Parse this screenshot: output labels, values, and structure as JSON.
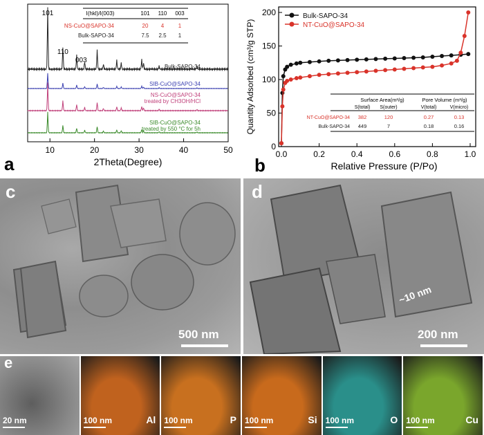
{
  "panels": {
    "a": "a",
    "b": "b",
    "c": "c",
    "d": "d",
    "e": "e"
  },
  "chart_data": [
    {
      "type": "line",
      "panel": "a",
      "xlabel": "2Theta(Degree)",
      "xlim": [
        5,
        50
      ],
      "xticks": [
        "10",
        "20",
        "30",
        "40",
        "50"
      ],
      "peak_labels": [
        "101",
        "110",
        "003"
      ],
      "series": [
        {
          "name": "Bulk-SAPO-34",
          "color": "#222222"
        },
        {
          "name": "SIB-CuO@SAPO-34",
          "color": "#3a3fb0"
        },
        {
          "name": "NS-CuO@SAPO-34",
          "sub": "treated by CH3OH/HCl",
          "color": "#c0407a"
        },
        {
          "name": "SIB-CuO@SAPO-34",
          "sub": "treated by 550 °C for 5h",
          "color": "#3a8a2a"
        }
      ],
      "table": {
        "headers": [
          "I(hkl)/I(003)",
          "101",
          "110",
          "003"
        ],
        "rows": [
          {
            "name": "NS-CuO@SAPO-34",
            "values": [
              "20",
              "4",
              "1"
            ],
            "color": "#d9332a"
          },
          {
            "name": "Bulk-SAPO-34",
            "values": [
              "7.5",
              "2.5",
              "1"
            ],
            "color": "#222222"
          }
        ]
      }
    },
    {
      "type": "line",
      "panel": "b",
      "xlabel": "Relative Pressure (P/Po)",
      "ylabel": "Quantity Adsorbed (cm³/g STP)",
      "xlim": [
        0,
        1.0
      ],
      "ylim": [
        0,
        200
      ],
      "xticks": [
        "0.0",
        "0.2",
        "0.4",
        "0.6",
        "0.8",
        "1.0"
      ],
      "yticks": [
        "0",
        "50",
        "100",
        "150",
        "200"
      ],
      "legend_position": "top-left",
      "series": [
        {
          "name": "Bulk-SAPO-34",
          "color": "#111111",
          "x": [
            0.0,
            0.005,
            0.01,
            0.02,
            0.03,
            0.05,
            0.08,
            0.1,
            0.15,
            0.2,
            0.25,
            0.3,
            0.35,
            0.4,
            0.45,
            0.5,
            0.55,
            0.6,
            0.65,
            0.7,
            0.75,
            0.8,
            0.85,
            0.9,
            0.95,
            0.99
          ],
          "y": [
            5,
            80,
            105,
            115,
            119,
            122,
            124,
            125,
            126,
            127,
            128,
            128.5,
            129,
            129.5,
            130,
            130.5,
            131,
            131.5,
            132,
            132.5,
            133,
            134,
            135,
            136,
            137,
            138
          ]
        },
        {
          "name": "NT-CuO@SAPO-34",
          "color": "#d9332a",
          "x": [
            0.0,
            0.005,
            0.01,
            0.02,
            0.03,
            0.05,
            0.08,
            0.1,
            0.15,
            0.2,
            0.25,
            0.3,
            0.35,
            0.4,
            0.45,
            0.5,
            0.55,
            0.6,
            0.65,
            0.7,
            0.75,
            0.8,
            0.85,
            0.9,
            0.93,
            0.95,
            0.97,
            0.99
          ],
          "y": [
            5,
            60,
            85,
            95,
            98,
            100,
            102,
            103,
            105,
            107,
            108,
            109,
            110,
            111,
            112,
            113,
            114,
            115,
            116,
            117,
            118,
            119,
            121,
            124,
            128,
            140,
            165,
            200
          ]
        }
      ],
      "table": {
        "group_headers": [
          "Surface Area(m²/g)",
          "Pore Volume (m³/g)"
        ],
        "headers": [
          "S(total)",
          "S(outer)",
          "V(total)",
          "V(micro)"
        ],
        "rows": [
          {
            "name": "NT-CuO@SAPO-34",
            "values": [
              "382",
              "120",
              "0.27",
              "0.13"
            ],
            "color": "#d9332a"
          },
          {
            "name": "Bulk-SAPO-34",
            "values": [
              "449",
              "7",
              "0.18",
              "0.16"
            ],
            "color": "#222222"
          }
        ]
      }
    }
  ],
  "micrographs": {
    "c_scale": "500 nm",
    "d_scale": "200 nm",
    "d_annotation": "~10 nm",
    "e_maps": [
      {
        "scale": "20 nm",
        "element": "",
        "color": "#7a7a7a"
      },
      {
        "scale": "100 nm",
        "element": "Al",
        "color": "#c0621e"
      },
      {
        "scale": "100 nm",
        "element": "P",
        "color": "#c8701f"
      },
      {
        "scale": "100 nm",
        "element": "Si",
        "color": "#c86a1c"
      },
      {
        "scale": "100 nm",
        "element": "O",
        "color": "#2a8f8a"
      },
      {
        "scale": "100 nm",
        "element": "Cu",
        "color": "#7aa62c"
      }
    ]
  }
}
